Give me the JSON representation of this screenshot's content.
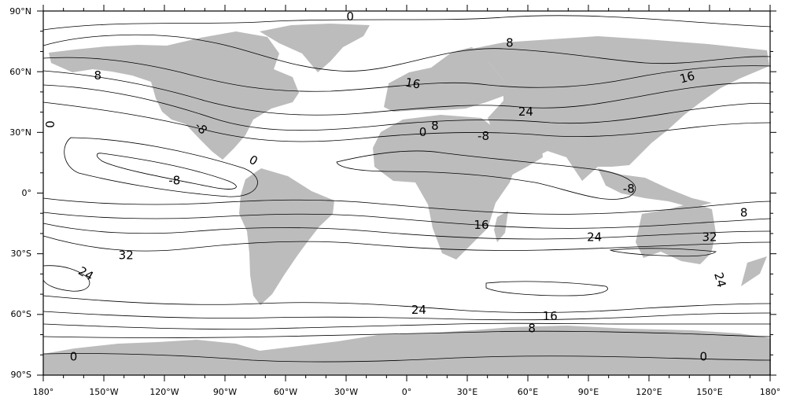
{
  "map": {
    "projection": "equirectangular",
    "land_color": "#bcbcbc",
    "contour_color": "#000000",
    "lon_range": [
      -180,
      180
    ],
    "lat_range": [
      -90,
      90
    ],
    "y_tick_labels": [
      "90°N",
      "60°N",
      "30°N",
      "0°",
      "30°S",
      "60°S",
      "90°S"
    ],
    "x_tick_labels": [
      "180°",
      "150°W",
      "120°W",
      "90°W",
      "60°W",
      "30°W",
      "0°",
      "30°E",
      "60°E",
      "90°E",
      "120°E",
      "150°E",
      "180°"
    ],
    "contour_labels": [
      {
        "text": "0",
        "lon": -28,
        "lat": 87
      },
      {
        "text": "8",
        "lon": 51,
        "lat": 74
      },
      {
        "text": "8",
        "lon": -153,
        "lat": 58
      },
      {
        "text": "16",
        "lon": 3,
        "lat": 54,
        "rot": 10
      },
      {
        "text": "16",
        "lon": 139,
        "lat": 57,
        "rot": -15
      },
      {
        "text": "24",
        "lon": 59,
        "lat": 40
      },
      {
        "text": "0",
        "lon": -177,
        "lat": 34,
        "rot": 90
      },
      {
        "text": "-8",
        "lon": -102,
        "lat": 32,
        "rot": 45
      },
      {
        "text": "0",
        "lon": 8,
        "lat": 30
      },
      {
        "text": "8",
        "lon": 14,
        "lat": 33
      },
      {
        "text": "-8",
        "lon": 38,
        "lat": 28
      },
      {
        "text": "0",
        "lon": -76,
        "lat": 16,
        "rot": 30
      },
      {
        "text": "-8",
        "lon": -115,
        "lat": 6
      },
      {
        "text": "-8",
        "lon": 110,
        "lat": 2
      },
      {
        "text": "8",
        "lon": 167,
        "lat": -10
      },
      {
        "text": "16",
        "lon": 37,
        "lat": -16
      },
      {
        "text": "24",
        "lon": 93,
        "lat": -22
      },
      {
        "text": "32",
        "lon": 150,
        "lat": -22
      },
      {
        "text": "32",
        "lon": -139,
        "lat": -31
      },
      {
        "text": "24",
        "lon": -159,
        "lat": -40,
        "rot": 30
      },
      {
        "text": "24",
        "lon": 155,
        "lat": -43,
        "rot": 75
      },
      {
        "text": "24",
        "lon": 6,
        "lat": -58
      },
      {
        "text": "16",
        "lon": 71,
        "lat": -61
      },
      {
        "text": "8",
        "lon": 62,
        "lat": -67
      },
      {
        "text": "0",
        "lon": -165,
        "lat": -81
      },
      {
        "text": "0",
        "lon": 147,
        "lat": -81
      }
    ]
  }
}
